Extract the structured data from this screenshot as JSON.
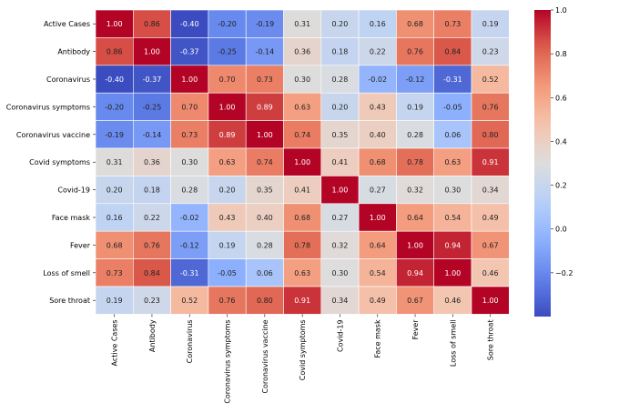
{
  "chart_data": {
    "type": "heatmap",
    "title": "",
    "xlabel": "",
    "ylabel": "",
    "colormap": "coolwarm",
    "value_range": [
      -0.4,
      1.0
    ],
    "categories": [
      "Active Cases",
      "Antibody",
      "Coronavirus",
      "Coronavirus symptoms",
      "Coronavirus vaccine",
      "Covid symptoms",
      "Covid-19",
      "Face mask",
      "Fever",
      "Loss of smell",
      "Sore throat"
    ],
    "values": [
      [
        1.0,
        0.86,
        -0.4,
        -0.2,
        -0.19,
        0.31,
        0.2,
        0.16,
        0.68,
        0.73,
        0.19
      ],
      [
        0.86,
        1.0,
        -0.37,
        -0.25,
        -0.14,
        0.36,
        0.18,
        0.22,
        0.76,
        0.84,
        0.23
      ],
      [
        -0.4,
        -0.37,
        1.0,
        0.7,
        0.73,
        0.3,
        0.28,
        -0.02,
        -0.12,
        -0.31,
        0.52
      ],
      [
        -0.2,
        -0.25,
        0.7,
        1.0,
        0.89,
        0.63,
        0.2,
        0.43,
        0.19,
        -0.05,
        0.76
      ],
      [
        -0.19,
        -0.14,
        0.73,
        0.89,
        1.0,
        0.74,
        0.35,
        0.4,
        0.28,
        0.06,
        0.8
      ],
      [
        0.31,
        0.36,
        0.3,
        0.63,
        0.74,
        1.0,
        0.41,
        0.68,
        0.78,
        0.63,
        0.91
      ],
      [
        0.2,
        0.18,
        0.28,
        0.2,
        0.35,
        0.41,
        1.0,
        0.27,
        0.32,
        0.3,
        0.34
      ],
      [
        0.16,
        0.22,
        -0.02,
        0.43,
        0.4,
        0.68,
        0.27,
        1.0,
        0.64,
        0.54,
        0.49
      ],
      [
        0.68,
        0.76,
        -0.12,
        0.19,
        0.28,
        0.78,
        0.32,
        0.64,
        1.0,
        0.94,
        0.67
      ],
      [
        0.73,
        0.84,
        -0.31,
        -0.05,
        0.06,
        0.63,
        0.3,
        0.54,
        0.94,
        1.0,
        0.46
      ],
      [
        0.19,
        0.23,
        0.52,
        0.76,
        0.8,
        0.91,
        0.34,
        0.49,
        0.67,
        0.46,
        1.0
      ]
    ],
    "colorbar": {
      "ticks": [
        1.0,
        0.8,
        0.6,
        0.4,
        0.2,
        0.0,
        -0.2
      ],
      "tick_labels": [
        "1.0",
        "0.8",
        "0.6",
        "0.4",
        "0.2",
        "0.0",
        "−0.2"
      ]
    }
  }
}
